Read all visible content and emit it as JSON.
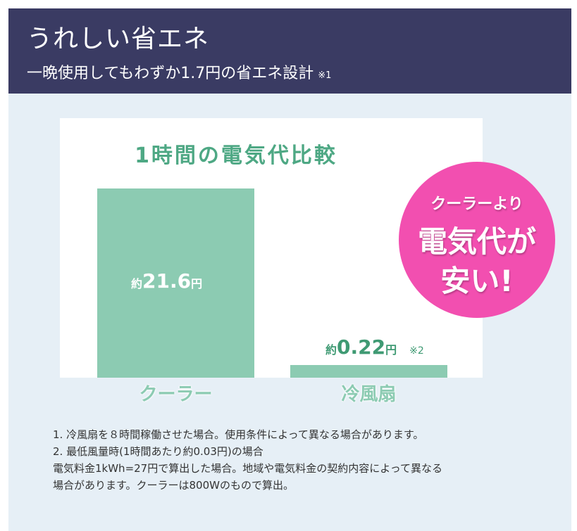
{
  "header": {
    "title": "うれしい省エネ",
    "subtitle": "一晩使用してもわずか1.7円の省エネ設計",
    "subtitle_note": "※1"
  },
  "chart_data": {
    "type": "bar",
    "title": "1時間の電気代比較",
    "categories": [
      "クーラー",
      "冷風扇"
    ],
    "values": [
      21.6,
      0.22
    ],
    "unit": "円",
    "value_labels": [
      {
        "prefix": "約",
        "value": "21.6",
        "unit": "円",
        "note": ""
      },
      {
        "prefix": "約",
        "value": "0.22",
        "unit": "円",
        "note": "※2"
      }
    ],
    "bar_color": "#8ccbb2",
    "title_color": "#4ea884"
  },
  "badge": {
    "line1": "クーラーより",
    "line2": "電気代が",
    "line3": "安い!",
    "color": "#f24fb0"
  },
  "notes": [
    "1. 冷風扇を８時間稼働させた場合。使用条件によって異なる場合があります。",
    "2. 最低風量時(1時間あたり約0.03円)の場合",
    "電気料金1kWh=27円で算出した場合。地域や電気料金の契約内容によって異なる",
    "場合があります。クーラーは800Wのもので算出。"
  ]
}
